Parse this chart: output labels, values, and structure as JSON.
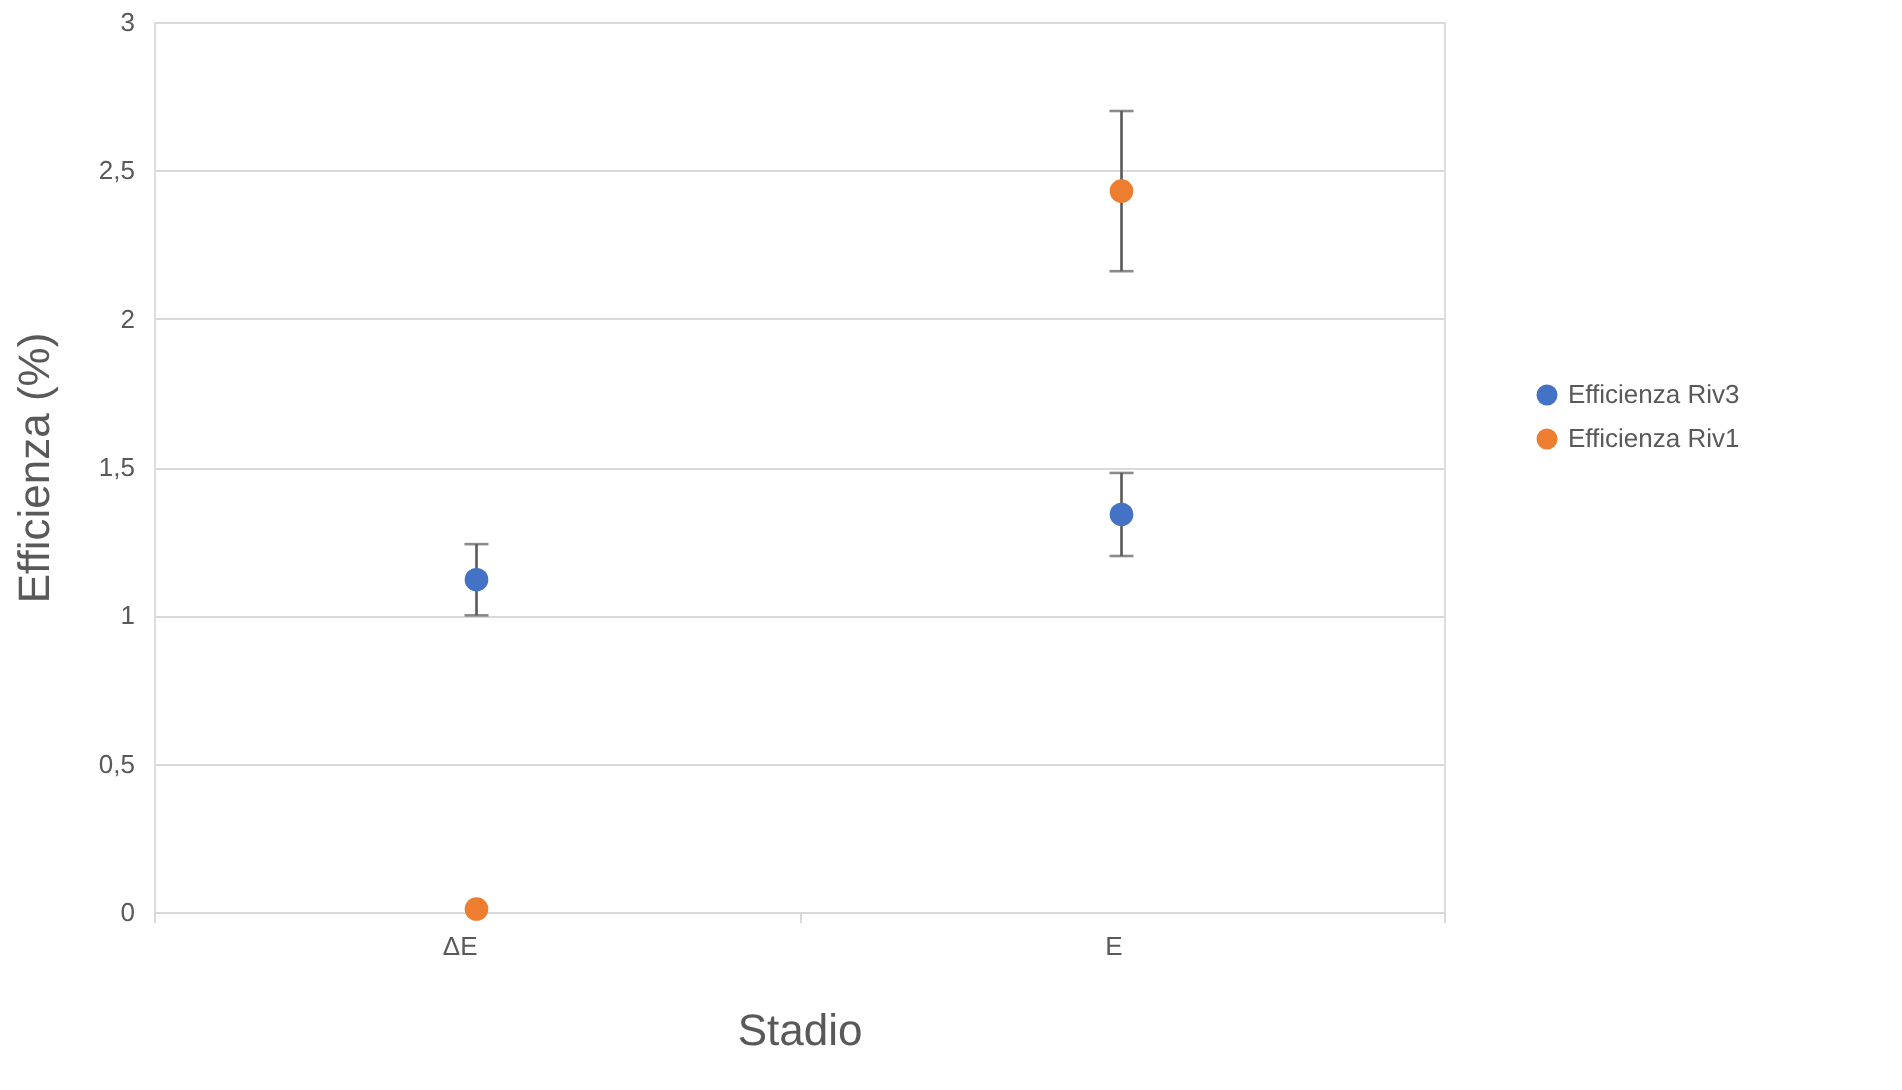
{
  "chart_data": {
    "type": "scatter",
    "xlabel": "Stadio",
    "ylabel": "Efficienza (%)",
    "categories": [
      "ΔE",
      "E"
    ],
    "series": [
      {
        "name": "Efficienza Riv3",
        "color": "#4472c4",
        "values": [
          1.12,
          1.34
        ],
        "errors": [
          0.12,
          0.14
        ]
      },
      {
        "name": "Efficienza Riv1",
        "color": "#ed7d31",
        "values": [
          0.01,
          2.43
        ],
        "errors": [
          null,
          0.27
        ]
      }
    ],
    "ylim": [
      0,
      3
    ],
    "yticks": [
      0,
      {
        "value": 0.5,
        "label": "0,5"
      },
      1,
      {
        "value": 1.5,
        "label": "1,5"
      },
      2,
      {
        "value": 2.5,
        "label": "2,5"
      },
      3
    ],
    "grid": "y",
    "legend": "right",
    "marker": "circle"
  }
}
